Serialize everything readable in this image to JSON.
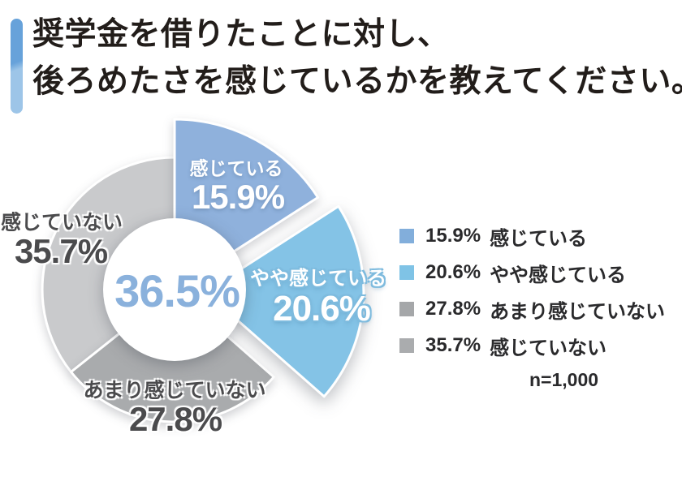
{
  "header": {
    "title_line1": "奨学金を借りたことに対し、",
    "title_line2": "後ろめたさを感じているかを教えてください。",
    "accent_bar_top_color": "#67a2da",
    "accent_bar_bottom_color": "#9dc5e8"
  },
  "chart_data": {
    "type": "pie",
    "donut": true,
    "title": "奨学金を借りたことに対し、後ろめたさを感じているかを教えてください。",
    "start_angle_deg": 0,
    "center_label": "36.5%",
    "sample_size": "n=1,000",
    "slices": [
      {
        "label": "感じている",
        "value": 15.9,
        "pct_label": "15.9%",
        "color": "#8fb1dc",
        "radius": 210,
        "explode": 0
      },
      {
        "label": "やや感じている",
        "value": 20.6,
        "pct_label": "20.6%",
        "color": "#84c3e6",
        "radius": 195,
        "explode": 38
      },
      {
        "label": "あまり感じていない",
        "value": 27.8,
        "pct_label": "27.8%",
        "color": "#a9abad",
        "radius": 163,
        "explode": 0
      },
      {
        "label": "感じていない",
        "value": 35.7,
        "pct_label": "35.7%",
        "color": "#c9cacc",
        "radius": 163,
        "explode": 0
      }
    ]
  },
  "legend": {
    "items": [
      {
        "swatch": "#82aedb",
        "pct": "15.9%",
        "label": "感じている"
      },
      {
        "swatch": "#7fc3e6",
        "pct": "20.6%",
        "label": "やや感じている"
      },
      {
        "swatch": "#a5a7a9",
        "pct": "27.8%",
        "label": "あまり感じていない"
      },
      {
        "swatch": "#aaacae",
        "pct": "35.7%",
        "label": "感じていない"
      }
    ],
    "note": "n=1,000"
  }
}
